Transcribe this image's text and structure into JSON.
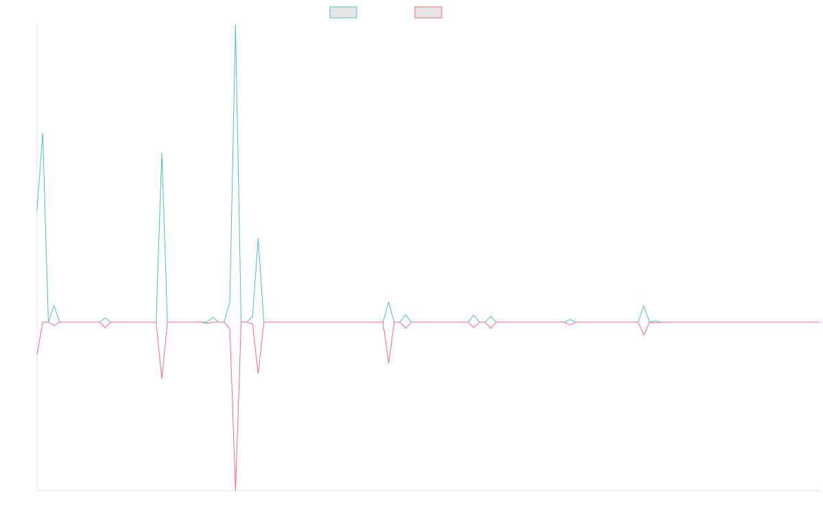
{
  "chart_data": {
    "type": "line",
    "ylim": [
      -246,
      434
    ],
    "series": [
      {
        "color": "#4bc0c0",
        "values": [
          163,
          276,
          0,
          24,
          0,
          0,
          0,
          0,
          0,
          0,
          0,
          0,
          6,
          0,
          0,
          0,
          0,
          0,
          0,
          0,
          0,
          0,
          247,
          0,
          0,
          0,
          0,
          0,
          0,
          0,
          0,
          7,
          0,
          0,
          30,
          434,
          0,
          0,
          8,
          122,
          0,
          0,
          0,
          0,
          0,
          0,
          0,
          0,
          0,
          0,
          0,
          0,
          0,
          0,
          0,
          0,
          0,
          0,
          0,
          0,
          0,
          0,
          29,
          0,
          0,
          11,
          0,
          0,
          0,
          0,
          0,
          0,
          0,
          0,
          0,
          0,
          0,
          10,
          0,
          0,
          8,
          0,
          0,
          0,
          0,
          0,
          0,
          0,
          0,
          0,
          0,
          0,
          0,
          0,
          4,
          0,
          0,
          0,
          0,
          0,
          0,
          0,
          0,
          0,
          0,
          0,
          0,
          24,
          0,
          2,
          0,
          0,
          0,
          0,
          0,
          0,
          0,
          0,
          0,
          0,
          0,
          0,
          0,
          0,
          0,
          0,
          0,
          0,
          0,
          0,
          0,
          0,
          0,
          0,
          0,
          0,
          0,
          0,
          0
        ]
      },
      {
        "color": "#ff6384",
        "values": [
          -47,
          0,
          0,
          -5,
          0,
          0,
          0,
          0,
          0,
          0,
          0,
          0,
          -8,
          0,
          0,
          0,
          0,
          0,
          0,
          0,
          0,
          0,
          -83,
          0,
          0,
          0,
          0,
          0,
          0,
          0,
          -2,
          0,
          0,
          0,
          -10,
          -246,
          0,
          0,
          -3,
          -75,
          0,
          0,
          0,
          0,
          0,
          0,
          0,
          0,
          0,
          0,
          0,
          0,
          0,
          0,
          0,
          0,
          0,
          0,
          0,
          0,
          0,
          0,
          -60,
          0,
          0,
          -9,
          0,
          0,
          0,
          0,
          0,
          0,
          0,
          0,
          0,
          0,
          0,
          -8,
          0,
          0,
          -9,
          0,
          0,
          0,
          0,
          0,
          0,
          0,
          0,
          0,
          0,
          0,
          0,
          0,
          -4,
          0,
          0,
          0,
          0,
          0,
          0,
          0,
          0,
          0,
          0,
          0,
          0,
          -19,
          0,
          -1,
          0,
          0,
          0,
          0,
          0,
          0,
          0,
          0,
          0,
          0,
          0,
          0,
          0,
          0,
          0,
          0,
          0,
          0,
          0,
          0,
          0,
          0,
          0,
          0,
          0,
          0,
          0,
          0,
          0
        ]
      }
    ]
  }
}
